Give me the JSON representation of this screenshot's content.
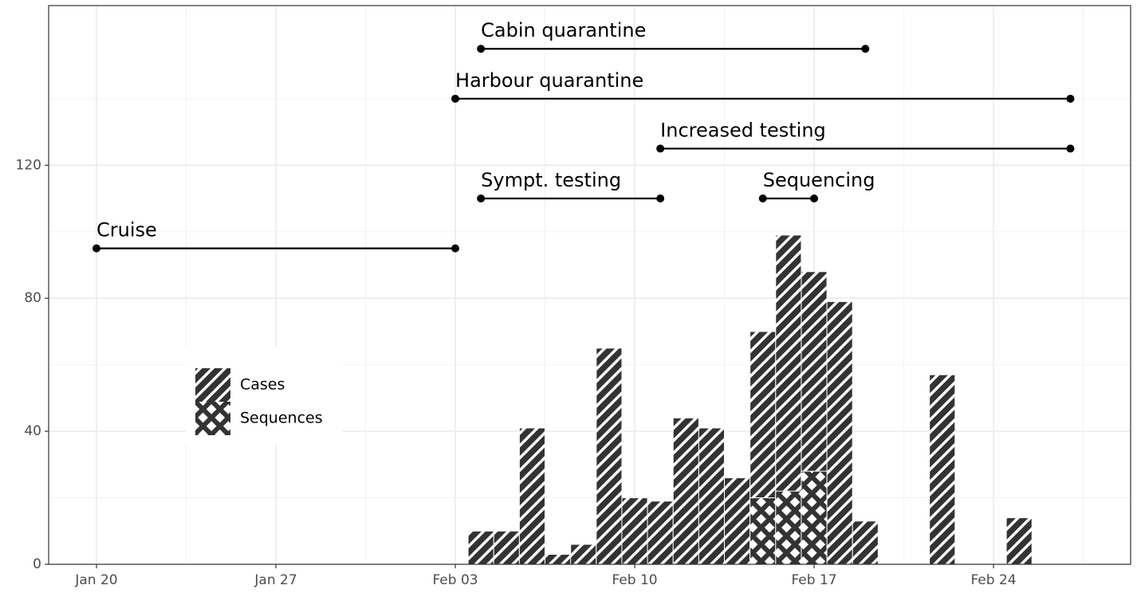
{
  "chart_data": {
    "type": "bar",
    "x": [
      15,
      16,
      17,
      18,
      19,
      20,
      21,
      22,
      23,
      24,
      25,
      26,
      27,
      28,
      29,
      30,
      33,
      36
    ],
    "series": [
      {
        "name": "Cases",
        "color": "#333333",
        "pattern": "stripes",
        "values": [
          10,
          10,
          41,
          3,
          6,
          65,
          20,
          19,
          44,
          41,
          26,
          70,
          99,
          88,
          79,
          13,
          57,
          14
        ]
      },
      {
        "name": "Sequences",
        "color": "#333333",
        "pattern": "crosshatch",
        "values": [
          null,
          null,
          null,
          null,
          null,
          null,
          null,
          null,
          null,
          null,
          null,
          20,
          22,
          28,
          null,
          null,
          null,
          null
        ]
      }
    ],
    "annotations": [
      {
        "text": "Cabin quarantine",
        "start": 15,
        "end": 30,
        "y": 155
      },
      {
        "text": "Harbour quarantine",
        "start": 14,
        "end": 38,
        "y": 140
      },
      {
        "text": "Increased testing",
        "start": 22,
        "end": 38,
        "y": 125
      },
      {
        "text": "Sympt. testing",
        "start": 15,
        "end": 22,
        "y": 110
      },
      {
        "text": "Sequencing",
        "start": 26,
        "end": 28,
        "y": 110
      },
      {
        "text": "Cruise",
        "start": 0,
        "end": 14,
        "y": 95
      }
    ],
    "xlim": [
      -1.867,
      40.35
    ],
    "xticks": [
      {
        "value": 0,
        "label": "Jan 20"
      },
      {
        "value": 7,
        "label": "Jan 27"
      },
      {
        "value": 14,
        "label": "Feb 03"
      },
      {
        "value": 21,
        "label": "Feb 10"
      },
      {
        "value": 28,
        "label": "Feb 17"
      },
      {
        "value": 35,
        "label": "Feb 24"
      }
    ],
    "ylim": [
      0,
      168
    ],
    "yticks": [
      0,
      40,
      80,
      120
    ],
    "grid": true,
    "legend": "bottom-left"
  }
}
